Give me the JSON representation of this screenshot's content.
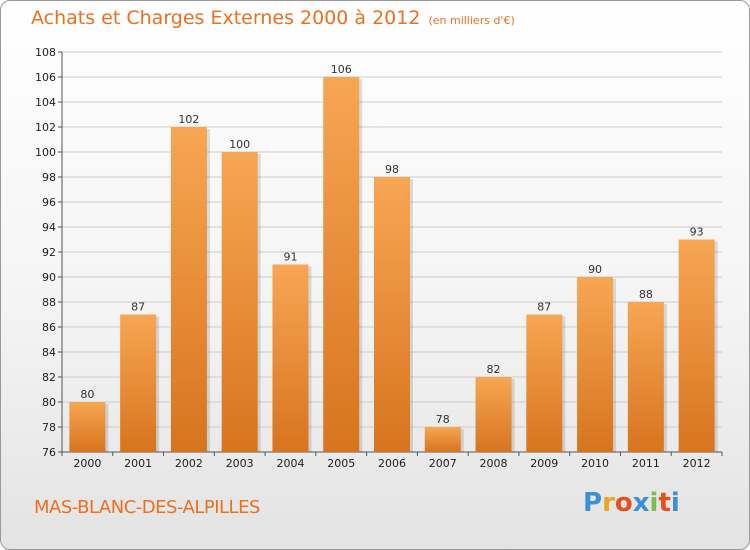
{
  "header": {
    "title": "Achats et Charges Externes 2000 à 2012",
    "unit": "(en milliers d'€)"
  },
  "footer": {
    "place": "MAS-BLANC-DES-ALPILLES",
    "logo": "Proxiti"
  },
  "colors": {
    "accent": "#ef6f1f",
    "bar_top": "#f7a653",
    "bar_bottom": "#d8741e",
    "grid": "#cccccc"
  },
  "chart_data": {
    "type": "bar",
    "categories": [
      "2000",
      "2001",
      "2002",
      "2003",
      "2004",
      "2005",
      "2006",
      "2007",
      "2008",
      "2009",
      "2010",
      "2011",
      "2012"
    ],
    "values": [
      80,
      87,
      102,
      100,
      91,
      106,
      98,
      78,
      82,
      87,
      90,
      88,
      93
    ],
    "ylim": [
      76,
      108
    ],
    "yticks": [
      76,
      78,
      80,
      82,
      84,
      86,
      88,
      90,
      92,
      94,
      96,
      98,
      100,
      102,
      104,
      106,
      108
    ],
    "grid": true,
    "legend": "none"
  }
}
